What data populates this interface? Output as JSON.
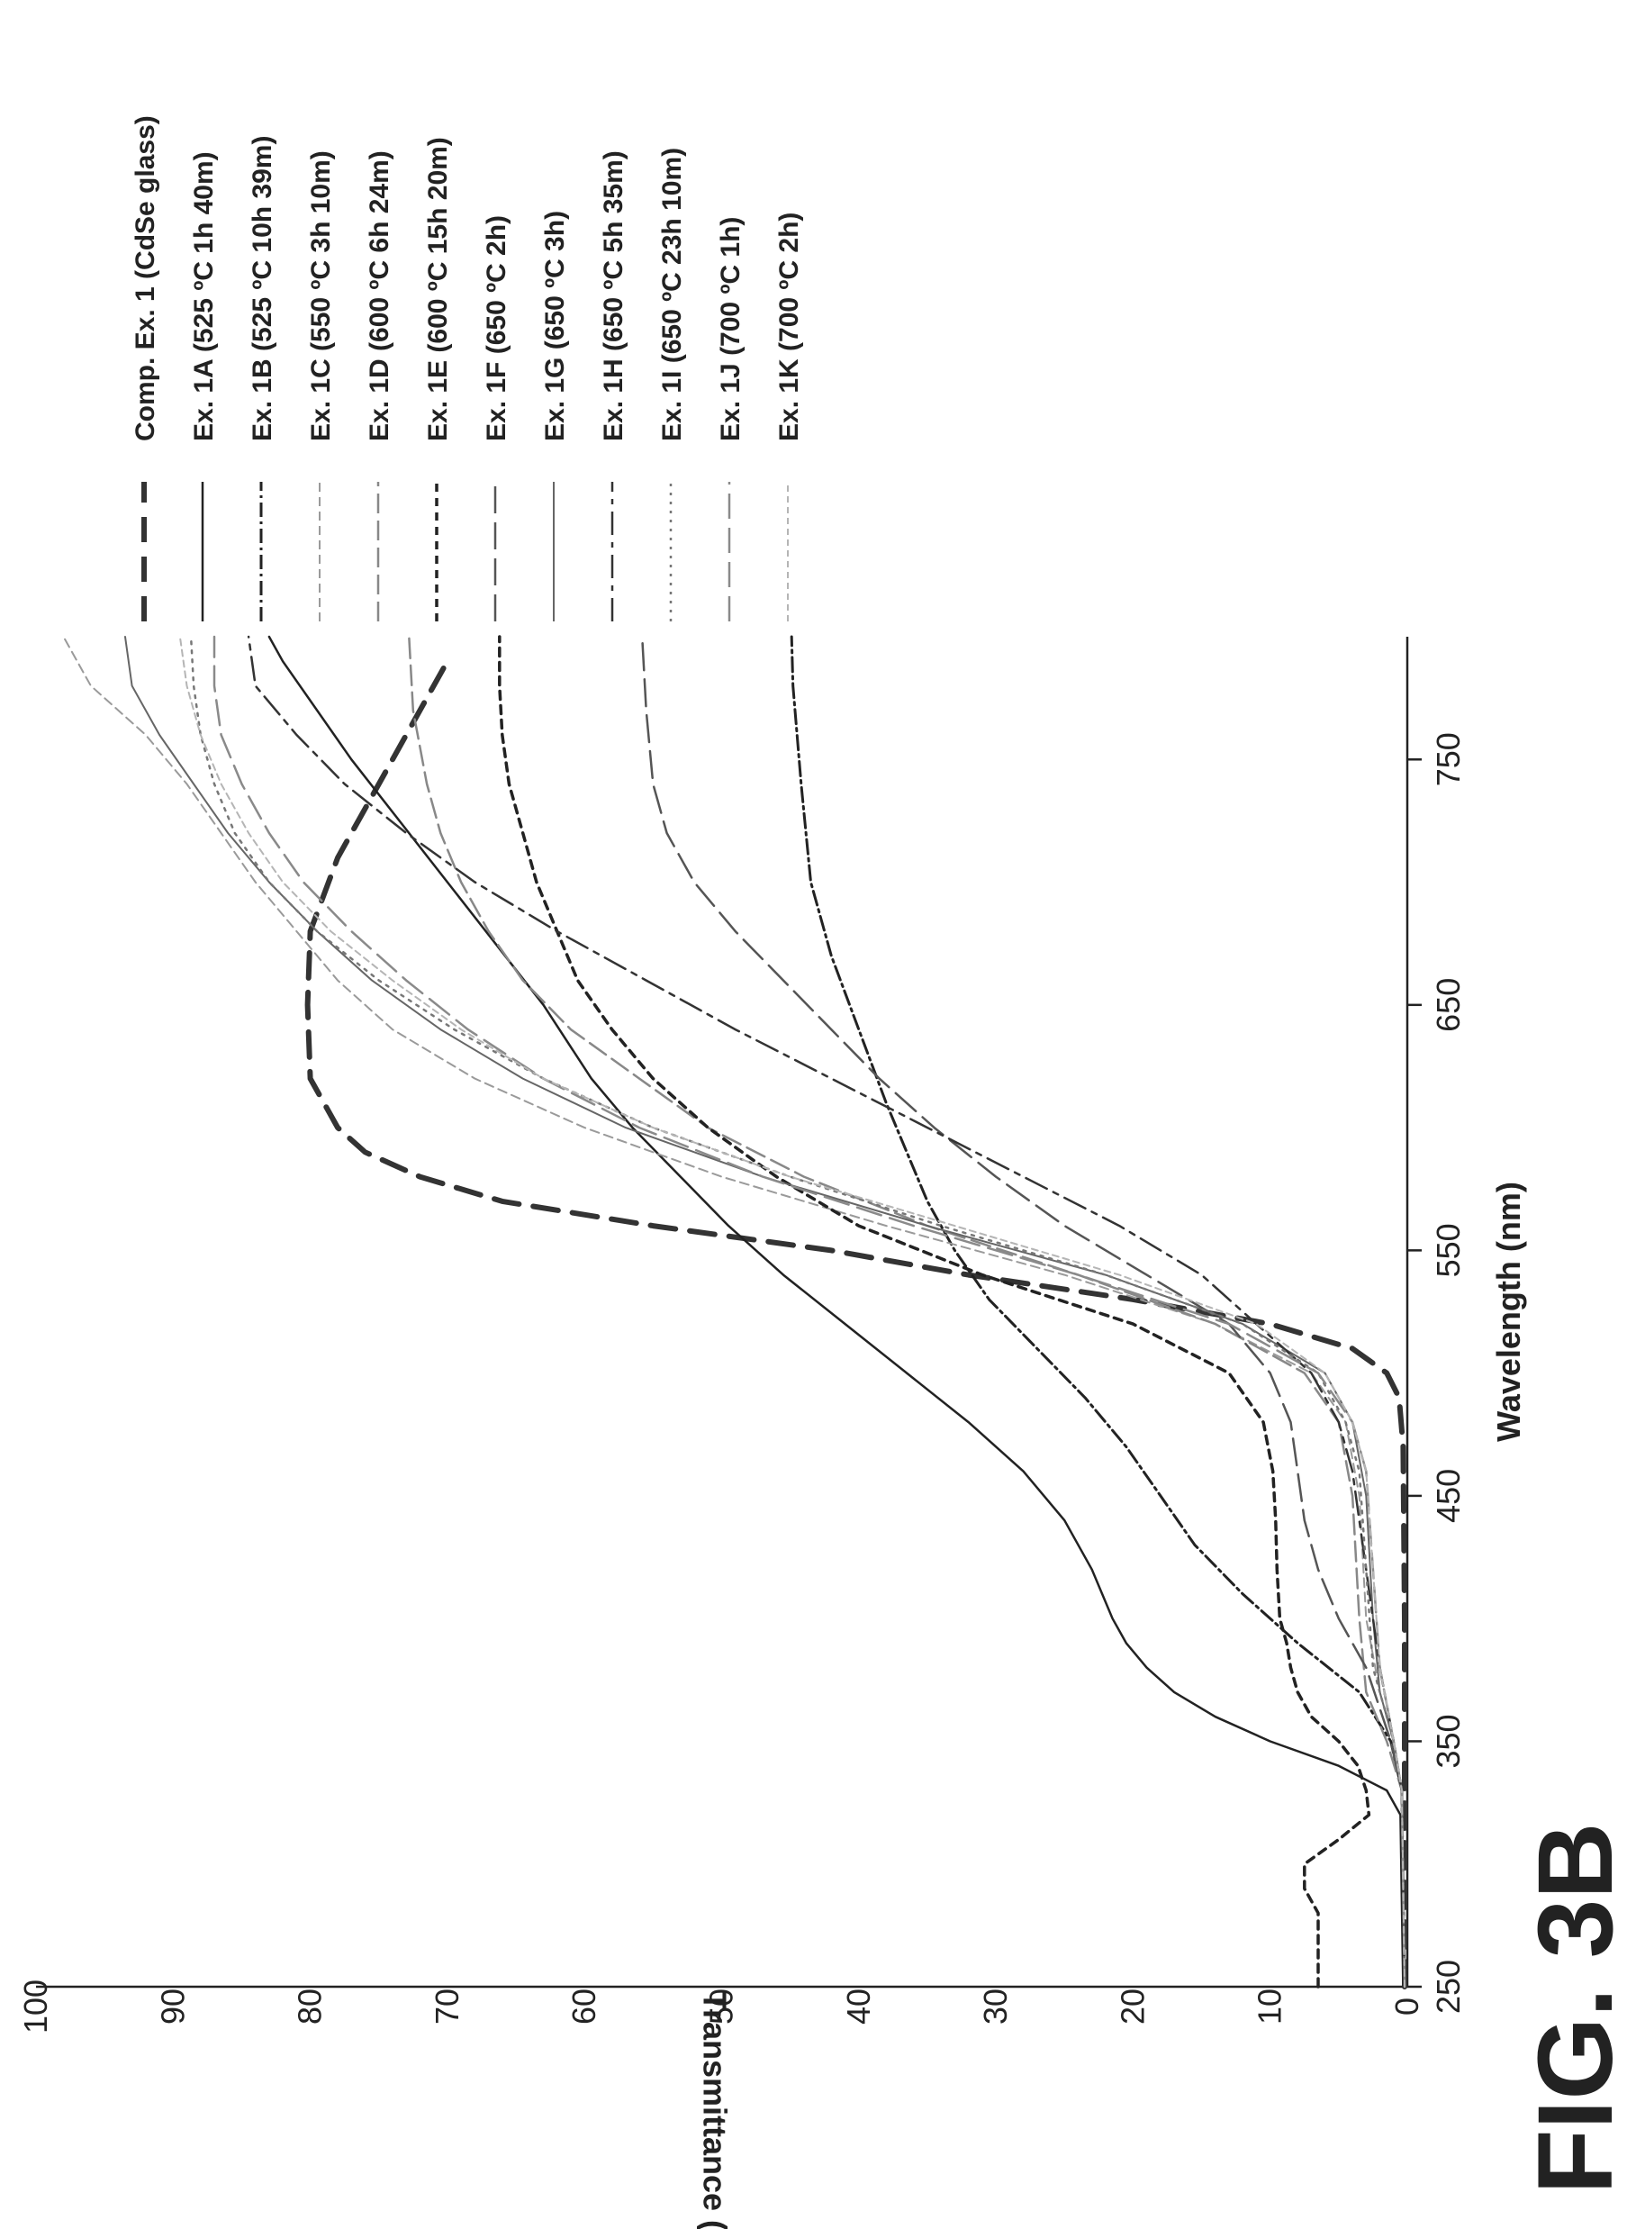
{
  "figure_label": "FIG. 3B",
  "chart_data": {
    "type": "line",
    "xlabel": "Wavelength (nm)",
    "ylabel": "Transmittance (%)",
    "xlim": [
      250,
      800
    ],
    "ylim": [
      0,
      100
    ],
    "x_ticks": [
      "250",
      "350",
      "450",
      "550",
      "650",
      "750"
    ],
    "y_ticks": [
      "0",
      "10",
      "20",
      "30",
      "40",
      "50",
      "60",
      "70",
      "80",
      "90",
      "100"
    ],
    "grid": false,
    "legend_position": "right",
    "series": [
      {
        "name": "Comp. Ex. 1 (CdSe glass)",
        "color": "#333333",
        "width": 6,
        "dash": "28,16",
        "points": [
          [
            250,
            0.2
          ],
          [
            400,
            0.2
          ],
          [
            470,
            0.3
          ],
          [
            490,
            0.6
          ],
          [
            500,
            1.5
          ],
          [
            510,
            4
          ],
          [
            520,
            10
          ],
          [
            530,
            20
          ],
          [
            540,
            32
          ],
          [
            550,
            42
          ],
          [
            560,
            55
          ],
          [
            570,
            66
          ],
          [
            580,
            72
          ],
          [
            590,
            76
          ],
          [
            600,
            78
          ],
          [
            620,
            80
          ],
          [
            650,
            80.2
          ],
          [
            680,
            80
          ],
          [
            710,
            78
          ],
          [
            740,
            75
          ],
          [
            770,
            72
          ],
          [
            790,
            70
          ]
        ]
      },
      {
        "name": "Ex. 1A (525 ºC 1h 40m)",
        "color": "#222222",
        "width": 2.5,
        "dash": "",
        "points": [
          [
            250,
            0.3
          ],
          [
            320,
            0.5
          ],
          [
            330,
            1.5
          ],
          [
            340,
            5
          ],
          [
            350,
            10
          ],
          [
            360,
            14
          ],
          [
            370,
            17
          ],
          [
            380,
            19
          ],
          [
            390,
            20.5
          ],
          [
            400,
            21.5
          ],
          [
            420,
            23
          ],
          [
            440,
            25
          ],
          [
            460,
            28
          ],
          [
            480,
            32
          ],
          [
            500,
            36.5
          ],
          [
            520,
            41
          ],
          [
            540,
            45.5
          ],
          [
            560,
            49.5
          ],
          [
            580,
            53
          ],
          [
            600,
            56.5
          ],
          [
            620,
            59.5
          ],
          [
            650,
            63
          ],
          [
            700,
            70
          ],
          [
            750,
            77
          ],
          [
            790,
            82
          ],
          [
            800,
            83
          ]
        ]
      },
      {
        "name": "Ex. 1B (525 ºC 10h 39m)",
        "color": "#222222",
        "width": 3,
        "dash": "16,5,3,5",
        "points": [
          [
            250,
            0.2
          ],
          [
            330,
            0.4
          ],
          [
            350,
            1.2
          ],
          [
            370,
            3.5
          ],
          [
            390,
            8
          ],
          [
            410,
            12
          ],
          [
            430,
            15.5
          ],
          [
            450,
            18
          ],
          [
            470,
            20.5
          ],
          [
            490,
            23.5
          ],
          [
            510,
            27
          ],
          [
            530,
            30.5
          ],
          [
            550,
            33
          ],
          [
            570,
            35
          ],
          [
            590,
            36.5
          ],
          [
            610,
            38
          ],
          [
            640,
            40
          ],
          [
            670,
            42
          ],
          [
            700,
            43.5
          ],
          [
            740,
            44.2
          ],
          [
            780,
            44.8
          ],
          [
            800,
            44.9
          ]
        ]
      },
      {
        "name": "Ex. 1C (550 ºC 3h 10m)",
        "color": "#9a9a9a",
        "width": 2,
        "dash": "10,6",
        "points": [
          [
            250,
            0.2
          ],
          [
            330,
            0.4
          ],
          [
            350,
            1
          ],
          [
            370,
            2
          ],
          [
            400,
            3
          ],
          [
            450,
            3.5
          ],
          [
            480,
            4.5
          ],
          [
            500,
            7
          ],
          [
            520,
            14
          ],
          [
            540,
            25
          ],
          [
            560,
            38
          ],
          [
            580,
            50
          ],
          [
            600,
            60
          ],
          [
            620,
            68
          ],
          [
            640,
            74
          ],
          [
            660,
            78
          ],
          [
            680,
            81
          ],
          [
            700,
            84
          ],
          [
            720,
            86.5
          ],
          [
            740,
            89
          ],
          [
            760,
            92
          ],
          [
            780,
            96
          ],
          [
            800,
            98
          ]
        ]
      },
      {
        "name": "Ex. 1D (600 ºC 6h 24m)",
        "color": "#888888",
        "width": 2.5,
        "dash": "22,8",
        "points": [
          [
            250,
            0.2
          ],
          [
            330,
            0.4
          ],
          [
            350,
            1.5
          ],
          [
            370,
            3
          ],
          [
            400,
            3.5
          ],
          [
            450,
            4
          ],
          [
            480,
            5
          ],
          [
            500,
            7.5
          ],
          [
            520,
            14
          ],
          [
            540,
            24
          ],
          [
            560,
            35
          ],
          [
            580,
            44
          ],
          [
            600,
            51
          ],
          [
            620,
            56
          ],
          [
            640,
            61
          ],
          [
            660,
            64.5
          ],
          [
            680,
            67
          ],
          [
            700,
            69
          ],
          [
            720,
            70.5
          ],
          [
            740,
            71.5
          ],
          [
            770,
            72.5
          ],
          [
            800,
            72.8
          ]
        ]
      },
      {
        "name": "Ex. 1E (600 ºC 15h 20m)",
        "color": "#222222",
        "width": 3.5,
        "dash": "9,7",
        "points": [
          [
            250,
            6.5
          ],
          [
            260,
            6.5
          ],
          [
            270,
            6.5
          ],
          [
            280,
            6.5
          ],
          [
            290,
            7.5
          ],
          [
            300,
            7.5
          ],
          [
            310,
            5
          ],
          [
            320,
            2.8
          ],
          [
            330,
            3
          ],
          [
            340,
            3.6
          ],
          [
            350,
            5
          ],
          [
            360,
            7
          ],
          [
            370,
            8
          ],
          [
            380,
            8.5
          ],
          [
            390,
            8.8
          ],
          [
            400,
            9.3
          ],
          [
            420,
            9.5
          ],
          [
            440,
            9.6
          ],
          [
            460,
            9.8
          ],
          [
            480,
            10.5
          ],
          [
            500,
            13
          ],
          [
            520,
            20
          ],
          [
            540,
            31
          ],
          [
            560,
            40
          ],
          [
            580,
            46
          ],
          [
            600,
            51
          ],
          [
            620,
            55
          ],
          [
            640,
            58
          ],
          [
            660,
            60.5
          ],
          [
            680,
            62
          ],
          [
            700,
            63.5
          ],
          [
            720,
            64.5
          ],
          [
            740,
            65.5
          ],
          [
            760,
            66
          ],
          [
            780,
            66.2
          ],
          [
            800,
            66.2
          ]
        ]
      },
      {
        "name": "Ex. 1F (650 ºC 2h)",
        "color": "#555555",
        "width": 2.5,
        "dash": "30,10",
        "points": [
          [
            250,
            0.2
          ],
          [
            330,
            0.4
          ],
          [
            350,
            1.2
          ],
          [
            380,
            3
          ],
          [
            400,
            5
          ],
          [
            420,
            6.5
          ],
          [
            440,
            7.5
          ],
          [
            460,
            8
          ],
          [
            480,
            8.5
          ],
          [
            500,
            10
          ],
          [
            520,
            13
          ],
          [
            540,
            19
          ],
          [
            560,
            25
          ],
          [
            580,
            30
          ],
          [
            600,
            34.5
          ],
          [
            620,
            38.5
          ],
          [
            640,
            42
          ],
          [
            660,
            45.5
          ],
          [
            680,
            49
          ],
          [
            700,
            52
          ],
          [
            720,
            54
          ],
          [
            740,
            55
          ],
          [
            770,
            55.5
          ],
          [
            800,
            55.8
          ]
        ]
      },
      {
        "name": "Ex. 1G (650 ºC 3h)",
        "color": "#666666",
        "width": 2,
        "dash": "",
        "points": [
          [
            250,
            0.2
          ],
          [
            330,
            0.4
          ],
          [
            350,
            1
          ],
          [
            370,
            2
          ],
          [
            400,
            2.5
          ],
          [
            450,
            3
          ],
          [
            480,
            4
          ],
          [
            500,
            6
          ],
          [
            520,
            12
          ],
          [
            540,
            22
          ],
          [
            560,
            35
          ],
          [
            580,
            47
          ],
          [
            600,
            57
          ],
          [
            620,
            64.5
          ],
          [
            640,
            70.5
          ],
          [
            660,
            75.5
          ],
          [
            680,
            79.5
          ],
          [
            700,
            83
          ],
          [
            720,
            86
          ],
          [
            740,
            88.5
          ],
          [
            760,
            91
          ],
          [
            780,
            93
          ],
          [
            800,
            93.5
          ]
        ]
      },
      {
        "name": "Ex. 1H (650 ºC 5h 35m)",
        "color": "#333333",
        "width": 2.5,
        "dash": "26,8,6,8",
        "points": [
          [
            250,
            0.2
          ],
          [
            330,
            0.4
          ],
          [
            350,
            1
          ],
          [
            380,
            2
          ],
          [
            420,
            3
          ],
          [
            460,
            4
          ],
          [
            480,
            5
          ],
          [
            500,
            7
          ],
          [
            520,
            11
          ],
          [
            540,
            15
          ],
          [
            560,
            21
          ],
          [
            580,
            28
          ],
          [
            600,
            35
          ],
          [
            620,
            42
          ],
          [
            640,
            49
          ],
          [
            660,
            55.5
          ],
          [
            680,
            62
          ],
          [
            700,
            68
          ],
          [
            720,
            73
          ],
          [
            740,
            77.5
          ],
          [
            760,
            81
          ],
          [
            780,
            84
          ],
          [
            800,
            84.5
          ]
        ]
      },
      {
        "name": "Ex. 1I (650 ºC 23h 10m)",
        "color": "#777777",
        "width": 2.5,
        "dash": "3,7",
        "points": [
          [
            250,
            0.2
          ],
          [
            330,
            0.4
          ],
          [
            350,
            1
          ],
          [
            380,
            2.5
          ],
          [
            420,
            3
          ],
          [
            460,
            3.5
          ],
          [
            480,
            4.5
          ],
          [
            500,
            6.5
          ],
          [
            520,
            12
          ],
          [
            540,
            22
          ],
          [
            560,
            34
          ],
          [
            580,
            45
          ],
          [
            600,
            55
          ],
          [
            620,
            63
          ],
          [
            640,
            69.5
          ],
          [
            660,
            75
          ],
          [
            680,
            79.5
          ],
          [
            700,
            83
          ],
          [
            720,
            85.5
          ],
          [
            740,
            87
          ],
          [
            760,
            88
          ],
          [
            780,
            88.5
          ],
          [
            800,
            88.7
          ]
        ]
      },
      {
        "name": "Ex. 1J (700 ºC 1h)",
        "color": "#8a8a8a",
        "width": 2.5,
        "dash": "28,10",
        "points": [
          [
            250,
            0.2
          ],
          [
            330,
            0.4
          ],
          [
            350,
            1
          ],
          [
            380,
            2
          ],
          [
            420,
            2.5
          ],
          [
            460,
            3
          ],
          [
            480,
            4
          ],
          [
            500,
            6.5
          ],
          [
            520,
            13
          ],
          [
            540,
            24
          ],
          [
            560,
            36
          ],
          [
            580,
            47
          ],
          [
            600,
            56
          ],
          [
            620,
            63
          ],
          [
            640,
            68.5
          ],
          [
            660,
            73
          ],
          [
            680,
            77
          ],
          [
            700,
            80.5
          ],
          [
            720,
            83
          ],
          [
            740,
            85
          ],
          [
            760,
            86.5
          ],
          [
            780,
            87
          ],
          [
            800,
            87
          ]
        ]
      },
      {
        "name": "Ex. 1K (700 ºC 2h)",
        "color": "#b5b5b5",
        "width": 2,
        "dash": "7,5",
        "points": [
          [
            250,
            0.2
          ],
          [
            330,
            0.4
          ],
          [
            350,
            1
          ],
          [
            380,
            2
          ],
          [
            420,
            2.5
          ],
          [
            460,
            3
          ],
          [
            480,
            4
          ],
          [
            500,
            6
          ],
          [
            520,
            11
          ],
          [
            540,
            21
          ],
          [
            560,
            33
          ],
          [
            580,
            45
          ],
          [
            600,
            55
          ],
          [
            620,
            63
          ],
          [
            640,
            69
          ],
          [
            660,
            74
          ],
          [
            680,
            78.5
          ],
          [
            700,
            82
          ],
          [
            720,
            84.5
          ],
          [
            740,
            86.5
          ],
          [
            760,
            88
          ],
          [
            780,
            89
          ],
          [
            800,
            89.5
          ]
        ]
      }
    ]
  }
}
